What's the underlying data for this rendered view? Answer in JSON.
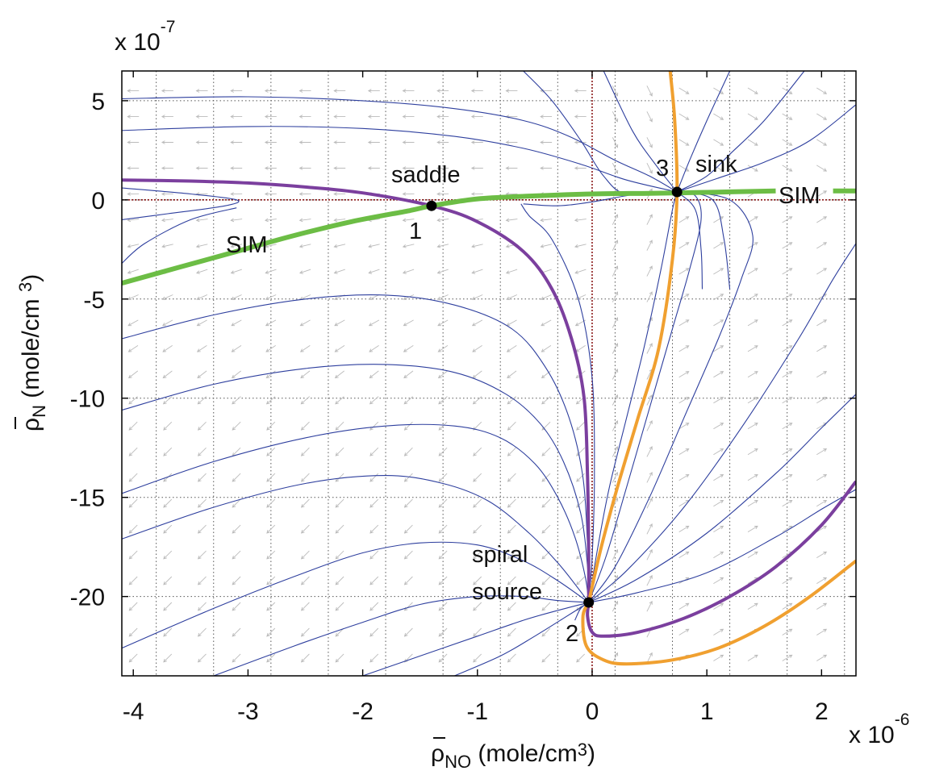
{
  "chart_data": {
    "type": "phase-portrait",
    "x_multiplier": {
      "base": "x 10",
      "exponent": "-6"
    },
    "y_multiplier": {
      "base": "x 10",
      "exponent": "-7"
    },
    "xlabel": {
      "symbol": "ρ",
      "sub": "NO",
      "unit": " (mole/cm",
      "sup": "3",
      "end": ")"
    },
    "ylabel": {
      "symbol": "ρ",
      "sub": "N",
      "unit": " (mole/cm ",
      "sup": "3",
      "end": ")"
    },
    "xlim": [
      -4.1,
      2.3
    ],
    "ylim": [
      -24,
      6.5
    ],
    "x_ticks": [
      {
        "v": -4,
        "label": "-4"
      },
      {
        "v": -3,
        "label": "-3"
      },
      {
        "v": -2,
        "label": "-2"
      },
      {
        "v": -1,
        "label": "-1"
      },
      {
        "v": 0,
        "label": "0"
      },
      {
        "v": 1,
        "label": "1"
      },
      {
        "v": 2,
        "label": "2"
      }
    ],
    "x_grid": [
      -3.8,
      -3.3,
      -2.8,
      -2.3,
      -1.8,
      -1.3,
      -0.8,
      -0.3,
      0.2,
      0.7,
      1.2,
      1.7,
      2.2
    ],
    "y_ticks": [
      {
        "v": 5,
        "label": "5"
      },
      {
        "v": 0,
        "label": "0"
      },
      {
        "v": -5,
        "label": "-5"
      },
      {
        "v": -10,
        "label": "-10"
      },
      {
        "v": -15,
        "label": "-15"
      },
      {
        "v": -20,
        "label": "-20"
      }
    ],
    "grid": true,
    "colors": {
      "trajectory": "#2e3f9e",
      "separatrix": "#7b3f9e",
      "nullcline": "#f0a030",
      "sim": "#6cbd45",
      "arrows": "#bbbbbb",
      "axes_zero": "#8b1a1a"
    },
    "critical_points": [
      {
        "id": "1",
        "type": "saddle",
        "x": -1.4,
        "y": -0.3,
        "number": "1",
        "label": "saddle"
      },
      {
        "id": "2",
        "type": "spiral source",
        "x": -0.03,
        "y": -20.3,
        "number": "2",
        "label_lines": [
          "spiral",
          "source"
        ]
      },
      {
        "id": "3",
        "type": "sink",
        "x": 0.74,
        "y": 0.4,
        "number": "3",
        "label": "sink"
      }
    ],
    "sim_label": "SIM",
    "series": [
      {
        "role": "sim",
        "segments": [
          [
            [
              -4.1,
              -4.2
            ],
            [
              -3.6,
              -3.4
            ],
            [
              -3.1,
              -2.6
            ],
            [
              -2.6,
              -1.8
            ],
            [
              -2.1,
              -1.1
            ],
            [
              -1.6,
              -0.55
            ],
            [
              -1.4,
              -0.3
            ],
            [
              -1.0,
              0.05
            ],
            [
              -0.5,
              0.2
            ],
            [
              0.0,
              0.3
            ],
            [
              0.5,
              0.33
            ],
            [
              1.0,
              0.38
            ],
            [
              1.6,
              0.45
            ]
          ],
          [
            [
              2.1,
              0.45
            ],
            [
              2.3,
              0.45
            ]
          ]
        ]
      },
      {
        "role": "separatrix",
        "segments": [
          [
            [
              -4.1,
              1.0
            ],
            [
              -3.5,
              0.95
            ],
            [
              -3.0,
              0.85
            ],
            [
              -2.5,
              0.65
            ],
            [
              -2.0,
              0.35
            ],
            [
              -1.4,
              -0.3
            ],
            [
              -1.0,
              -1.1
            ],
            [
              -0.6,
              -2.6
            ],
            [
              -0.35,
              -4.5
            ],
            [
              -0.18,
              -7.0
            ],
            [
              -0.07,
              -10.0
            ],
            [
              -0.04,
              -14.0
            ],
            [
              -0.03,
              -18.0
            ],
            [
              -0.03,
              -20.3
            ]
          ],
          [
            [
              -0.03,
              -20.3
            ],
            [
              -0.04,
              -21.0
            ],
            [
              0.0,
              -21.8
            ],
            [
              0.1,
              -22.0
            ],
            [
              0.4,
              -21.8
            ],
            [
              0.8,
              -21.1
            ],
            [
              1.2,
              -20.0
            ],
            [
              1.6,
              -18.5
            ],
            [
              2.0,
              -16.4
            ],
            [
              2.3,
              -14.2
            ]
          ]
        ]
      },
      {
        "role": "nullcline",
        "segments": [
          [
            [
              0.68,
              6.5
            ],
            [
              0.72,
              4.0
            ],
            [
              0.74,
              0.4
            ],
            [
              0.7,
              -3.0
            ],
            [
              0.58,
              -7.5
            ],
            [
              0.4,
              -11.0
            ],
            [
              0.22,
              -14.5
            ],
            [
              0.08,
              -17.5
            ],
            [
              -0.03,
              -20.3
            ]
          ],
          [
            [
              -0.03,
              -20.3
            ],
            [
              -0.08,
              -21.0
            ],
            [
              -0.05,
              -22.5
            ],
            [
              0.1,
              -23.2
            ],
            [
              0.3,
              -23.4
            ],
            [
              0.7,
              -23.2
            ],
            [
              1.1,
              -22.6
            ],
            [
              1.5,
              -21.5
            ],
            [
              1.9,
              -20.0
            ],
            [
              2.3,
              -18.2
            ]
          ]
        ]
      }
    ],
    "trajectories": [
      [
        [
          -4.1,
          5.1
        ],
        [
          -3.0,
          5.2
        ],
        [
          -2.0,
          5.0
        ],
        [
          -1.2,
          4.6
        ],
        [
          -0.6,
          4.0
        ],
        [
          -0.2,
          3.2
        ],
        [
          0.2,
          2.0
        ],
        [
          0.5,
          1.2
        ],
        [
          0.74,
          0.4
        ]
      ],
      [
        [
          -4.1,
          3.5
        ],
        [
          -3.0,
          3.7
        ],
        [
          -2.0,
          3.6
        ],
        [
          -1.2,
          3.2
        ],
        [
          -0.6,
          2.6
        ],
        [
          -0.1,
          1.8
        ],
        [
          0.3,
          1.0
        ],
        [
          0.74,
          0.4
        ]
      ],
      [
        [
          -4.1,
          0.6
        ],
        [
          -3.5,
          0.3
        ],
        [
          -3.1,
          0.0
        ],
        [
          -3.2,
          -0.3
        ],
        [
          -3.7,
          -0.7
        ],
        [
          -4.1,
          -1.0
        ]
      ],
      [
        [
          -4.1,
          -3.2
        ],
        [
          -3.9,
          -2.2
        ],
        [
          -3.5,
          -1.0
        ],
        [
          -3.1,
          -0.4
        ]
      ],
      [
        [
          -0.6,
          6.5
        ],
        [
          -0.35,
          5.0
        ],
        [
          -0.1,
          3.0
        ],
        [
          0.1,
          1.2
        ],
        [
          0.3,
          0.3
        ],
        [
          0.74,
          0.4
        ]
      ],
      [
        [
          -0.6,
          -0.2
        ],
        [
          -0.3,
          -0.3
        ],
        [
          0.0,
          -0.1
        ],
        [
          0.4,
          0.3
        ],
        [
          0.74,
          0.4
        ]
      ],
      [
        [
          -0.62,
          -0.2
        ],
        [
          -0.55,
          -0.8
        ],
        [
          -0.35,
          -2.0
        ],
        [
          -0.12,
          -5.0
        ],
        [
          0.0,
          -9.0
        ],
        [
          0.02,
          -14.0
        ],
        [
          0.0,
          -18.0
        ],
        [
          -0.03,
          -20.3
        ]
      ],
      [
        [
          -4.1,
          -7.0
        ],
        [
          -3.3,
          -5.8
        ],
        [
          -2.5,
          -5.0
        ],
        [
          -1.8,
          -4.8
        ],
        [
          -1.2,
          -5.3
        ],
        [
          -0.7,
          -6.5
        ],
        [
          -0.4,
          -8.5
        ],
        [
          -0.2,
          -11.0
        ],
        [
          -0.08,
          -14.0
        ],
        [
          -0.04,
          -17.5
        ],
        [
          -0.03,
          -20.3
        ]
      ],
      [
        [
          -4.1,
          -10.6
        ],
        [
          -3.3,
          -9.3
        ],
        [
          -2.5,
          -8.5
        ],
        [
          -1.8,
          -8.3
        ],
        [
          -1.2,
          -8.7
        ],
        [
          -0.75,
          -9.8
        ],
        [
          -0.45,
          -11.3
        ],
        [
          -0.25,
          -13.2
        ],
        [
          -0.1,
          -15.8
        ],
        [
          -0.04,
          -18.5
        ],
        [
          -0.03,
          -20.3
        ]
      ],
      [
        [
          -4.1,
          -14.8
        ],
        [
          -3.3,
          -13.2
        ],
        [
          -2.5,
          -12.0
        ],
        [
          -1.8,
          -11.4
        ],
        [
          -1.2,
          -11.4
        ],
        [
          -0.8,
          -12.0
        ],
        [
          -0.5,
          -13.3
        ],
        [
          -0.3,
          -15.0
        ],
        [
          -0.15,
          -17.0
        ],
        [
          -0.06,
          -19.0
        ],
        [
          -0.03,
          -20.3
        ]
      ],
      [
        [
          -4.1,
          -17.1
        ],
        [
          -3.3,
          -15.5
        ],
        [
          -2.5,
          -14.3
        ],
        [
          -1.8,
          -13.9
        ],
        [
          -1.3,
          -14.3
        ],
        [
          -0.9,
          -15.2
        ],
        [
          -0.55,
          -16.8
        ],
        [
          -0.3,
          -18.3
        ],
        [
          -0.12,
          -19.6
        ],
        [
          -0.03,
          -20.3
        ]
      ],
      [
        [
          -4.1,
          -22.6
        ],
        [
          -3.3,
          -20.6
        ],
        [
          -2.6,
          -19.0
        ],
        [
          -2.0,
          -17.8
        ],
        [
          -1.5,
          -17.3
        ],
        [
          -1.0,
          -17.4
        ],
        [
          -0.6,
          -18.2
        ],
        [
          -0.3,
          -19.2
        ],
        [
          -0.03,
          -20.3
        ]
      ],
      [
        [
          -3.3,
          -24.0
        ],
        [
          -2.6,
          -22.5
        ],
        [
          -2.0,
          -21.3
        ],
        [
          -1.5,
          -20.4
        ],
        [
          -1.0,
          -20.0
        ],
        [
          -0.6,
          -20.0
        ],
        [
          -0.3,
          -20.2
        ],
        [
          -0.03,
          -20.3
        ]
      ],
      [
        [
          -2.0,
          -24.0
        ],
        [
          -1.5,
          -23.0
        ],
        [
          -1.0,
          -22.0
        ],
        [
          -0.6,
          -21.2
        ],
        [
          -0.3,
          -20.7
        ],
        [
          -0.03,
          -20.3
        ]
      ],
      [
        [
          -1.2,
          -24.0
        ],
        [
          -0.8,
          -23.0
        ],
        [
          -0.5,
          -22.0
        ],
        [
          -0.25,
          -21.1
        ],
        [
          -0.03,
          -20.3
        ]
      ],
      [
        [
          -0.15,
          -21.2
        ],
        [
          -0.1,
          -20.6
        ],
        [
          -0.03,
          -20.3
        ]
      ],
      [
        [
          -0.03,
          -20.3
        ],
        [
          0.05,
          -17.5
        ],
        [
          0.15,
          -14.5
        ],
        [
          0.3,
          -11.0
        ],
        [
          0.45,
          -7.5
        ],
        [
          0.6,
          -3.5
        ],
        [
          0.7,
          -0.5
        ],
        [
          0.74,
          0.4
        ]
      ],
      [
        [
          -0.03,
          -20.3
        ],
        [
          0.12,
          -18.0
        ],
        [
          0.3,
          -14.5
        ],
        [
          0.5,
          -10.5
        ],
        [
          0.7,
          -6.5
        ],
        [
          0.85,
          -3.5
        ],
        [
          0.95,
          -1.0
        ],
        [
          0.9,
          0.2
        ],
        [
          0.74,
          0.4
        ]
      ],
      [
        [
          -0.03,
          -20.3
        ],
        [
          0.2,
          -18.5
        ],
        [
          0.5,
          -15.0
        ],
        [
          0.8,
          -11.0
        ],
        [
          1.1,
          -7.0
        ],
        [
          1.3,
          -4.0
        ],
        [
          1.4,
          -1.8
        ],
        [
          1.2,
          0.0
        ],
        [
          0.74,
          0.4
        ]
      ],
      [
        [
          -0.03,
          -20.3
        ],
        [
          0.3,
          -18.7
        ],
        [
          0.8,
          -15.5
        ],
        [
          1.3,
          -11.5
        ],
        [
          1.8,
          -7.0
        ],
        [
          2.1,
          -4.0
        ],
        [
          2.3,
          -2.2
        ]
      ],
      [
        [
          -0.03,
          -20.3
        ],
        [
          0.4,
          -19.1
        ],
        [
          1.0,
          -16.8
        ],
        [
          1.6,
          -13.8
        ],
        [
          2.0,
          -11.5
        ],
        [
          2.3,
          -9.8
        ]
      ],
      [
        [
          -0.03,
          -20.3
        ],
        [
          0.4,
          -19.8
        ],
        [
          1.0,
          -18.8
        ],
        [
          1.6,
          -17.0
        ],
        [
          2.0,
          -15.6
        ],
        [
          2.3,
          -14.6
        ]
      ],
      [
        [
          1.85,
          6.5
        ],
        [
          1.5,
          4.0
        ],
        [
          1.2,
          2.3
        ],
        [
          1.0,
          1.2
        ],
        [
          0.74,
          0.4
        ]
      ],
      [
        [
          2.3,
          4.8
        ],
        [
          1.9,
          3.0
        ],
        [
          1.5,
          1.9
        ],
        [
          1.1,
          1.1
        ],
        [
          0.74,
          0.4
        ]
      ],
      [
        [
          1.2,
          6.5
        ],
        [
          1.0,
          4.0
        ],
        [
          0.85,
          2.0
        ],
        [
          0.74,
          0.4
        ]
      ],
      [
        [
          0.1,
          6.5
        ],
        [
          0.35,
          3.5
        ],
        [
          0.55,
          1.8
        ],
        [
          0.74,
          0.4
        ]
      ],
      [
        [
          0.74,
          0.4
        ],
        [
          1.05,
          0.0
        ],
        [
          1.15,
          -2.0
        ],
        [
          1.2,
          -4.5
        ]
      ],
      [
        [
          0.74,
          0.4
        ],
        [
          0.9,
          -0.5
        ],
        [
          0.95,
          -2.5
        ],
        [
          0.96,
          -4.5
        ]
      ]
    ]
  }
}
